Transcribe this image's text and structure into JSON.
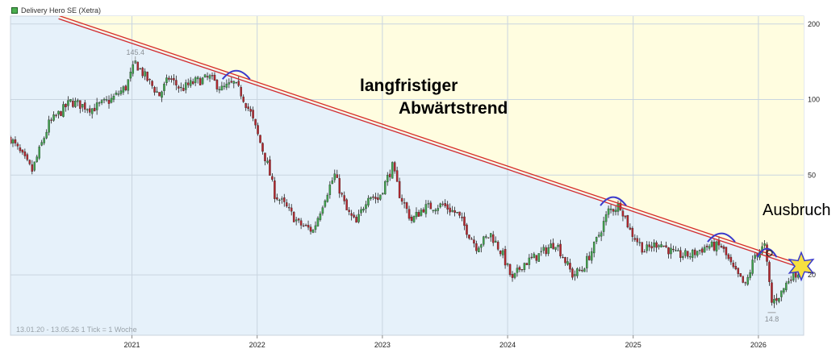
{
  "chart_data": {
    "type": "candlestick",
    "title": "Delivery Hero SE (Xetra)",
    "period_note": "13.01.20 - 13.05.26    1 Tick = 1 Woche",
    "y_scale": "log",
    "ylim": [
      11.5,
      215
    ],
    "y_ticks": [
      20,
      50,
      100,
      200
    ],
    "x_ticks": [
      "2021",
      "2022",
      "2023",
      "2024",
      "2025",
      "2026"
    ],
    "x_range": [
      "2020-01-13",
      "2026-05-13"
    ],
    "grid": true,
    "legend_position": "top-left",
    "high_label": {
      "value": 145.4,
      "date": "2021-01-11"
    },
    "low_label": {
      "value": 14.8,
      "date": "2026-02-09"
    },
    "annotations": [
      {
        "text": "langfristiger"
      },
      {
        "text": "Abwärtstrend"
      },
      {
        "text": "Ausbruch"
      }
    ],
    "trendline": {
      "start": {
        "date": "2020-06-01",
        "value": 213
      },
      "end": {
        "date": "2026-05-13",
        "value": 21.5
      }
    },
    "series": [
      {
        "close_points": [
          [
            "2020-01-13",
            70
          ],
          [
            "2020-03-16",
            52
          ],
          [
            "2020-05-04",
            80
          ],
          [
            "2020-07-06",
            98
          ],
          [
            "2020-09-07",
            92
          ],
          [
            "2020-11-02",
            100
          ],
          [
            "2020-12-14",
            112
          ],
          [
            "2021-01-11",
            140
          ],
          [
            "2021-02-15",
            120
          ],
          [
            "2021-03-22",
            104
          ],
          [
            "2021-04-19",
            122
          ],
          [
            "2021-05-24",
            110
          ],
          [
            "2021-07-05",
            118
          ],
          [
            "2021-08-16",
            122
          ],
          [
            "2021-09-20",
            110
          ],
          [
            "2021-10-25",
            116
          ],
          [
            "2021-11-15",
            106
          ],
          [
            "2021-12-13",
            88
          ],
          [
            "2022-01-03",
            72
          ],
          [
            "2022-01-31",
            55
          ],
          [
            "2022-02-21",
            42
          ],
          [
            "2022-03-21",
            38
          ],
          [
            "2022-05-02",
            32
          ],
          [
            "2022-06-13",
            30
          ],
          [
            "2022-07-18",
            41
          ],
          [
            "2022-08-15",
            50
          ],
          [
            "2022-09-19",
            36
          ],
          [
            "2022-10-17",
            32
          ],
          [
            "2022-11-21",
            42
          ],
          [
            "2022-12-19",
            40
          ],
          [
            "2023-01-30",
            54
          ],
          [
            "2023-02-20",
            42
          ],
          [
            "2023-03-27",
            33
          ],
          [
            "2023-05-01",
            37
          ],
          [
            "2023-06-26",
            38
          ],
          [
            "2023-08-07",
            35
          ],
          [
            "2023-10-02",
            26
          ],
          [
            "2023-11-13",
            29
          ],
          [
            "2023-12-18",
            24
          ],
          [
            "2024-01-15",
            19
          ],
          [
            "2024-02-12",
            22
          ],
          [
            "2024-04-01",
            24
          ],
          [
            "2024-05-20",
            27
          ],
          [
            "2024-07-08",
            20
          ],
          [
            "2024-08-05",
            21
          ],
          [
            "2024-09-09",
            26
          ],
          [
            "2024-10-21",
            36
          ],
          [
            "2024-11-25",
            38
          ],
          [
            "2024-12-23",
            30
          ],
          [
            "2025-02-03",
            25
          ],
          [
            "2025-03-17",
            27
          ],
          [
            "2025-05-05",
            24
          ],
          [
            "2025-06-16",
            24
          ],
          [
            "2025-08-04",
            26
          ],
          [
            "2025-09-15",
            26
          ],
          [
            "2025-10-20",
            21
          ],
          [
            "2025-11-24",
            18
          ],
          [
            "2025-12-22",
            24
          ],
          [
            "2026-01-19",
            26
          ],
          [
            "2026-02-09",
            15.5
          ],
          [
            "2026-03-09",
            17
          ],
          [
            "2026-04-06",
            20
          ],
          [
            "2026-05-11",
            21
          ]
        ]
      }
    ]
  }
}
